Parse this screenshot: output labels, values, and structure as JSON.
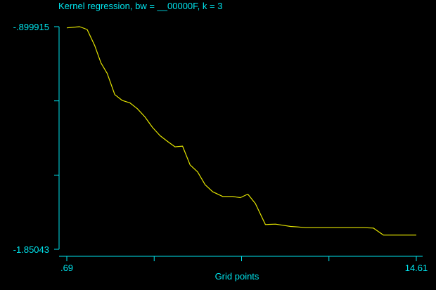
{
  "chart_data": {
    "type": "line",
    "title": "Kernel regression, bw = __00000F, k = 3",
    "xlabel": "Grid points",
    "ylabel": "",
    "xlim": [
      0.69,
      14.61
    ],
    "ylim": [
      -1.85043,
      -0.899915
    ],
    "x_tick_labels": [
      ".69",
      "",
      "",
      "",
      "14.61"
    ],
    "y_tick_labels": [
      "-.899915",
      "",
      "",
      "-1.85043"
    ],
    "grid": false,
    "axis_color": "#00e5ee",
    "series": [
      {
        "color": "#e5e500",
        "x": [
          0.69,
          1.2,
          1.5,
          1.8,
          2.05,
          2.3,
          2.6,
          2.9,
          3.2,
          3.5,
          3.8,
          4.1,
          4.4,
          4.7,
          5,
          5.3,
          5.6,
          5.9,
          6.2,
          6.5,
          6.9,
          7.3,
          7.6,
          7.9,
          8.2,
          8.6,
          9,
          9.3,
          9.6,
          9.9,
          10.2,
          10.6,
          11,
          11.3,
          11.7,
          12.1,
          12.5,
          12.9,
          13.3,
          13.6,
          13.9,
          14.3,
          14.61
        ],
        "y": [
          -0.905,
          -0.899915,
          -0.912,
          -0.98,
          -1.055,
          -1.1,
          -1.19,
          -1.215,
          -1.225,
          -1.25,
          -1.285,
          -1.33,
          -1.365,
          -1.39,
          -1.413,
          -1.41,
          -1.49,
          -1.52,
          -1.575,
          -1.605,
          -1.625,
          -1.625,
          -1.63,
          -1.615,
          -1.655,
          -1.745,
          -1.743,
          -1.748,
          -1.753,
          -1.755,
          -1.758,
          -1.758,
          -1.758,
          -1.758,
          -1.758,
          -1.758,
          -1.758,
          -1.76,
          -1.79,
          -1.79,
          -1.79,
          -1.79,
          -1.79
        ]
      }
    ]
  }
}
